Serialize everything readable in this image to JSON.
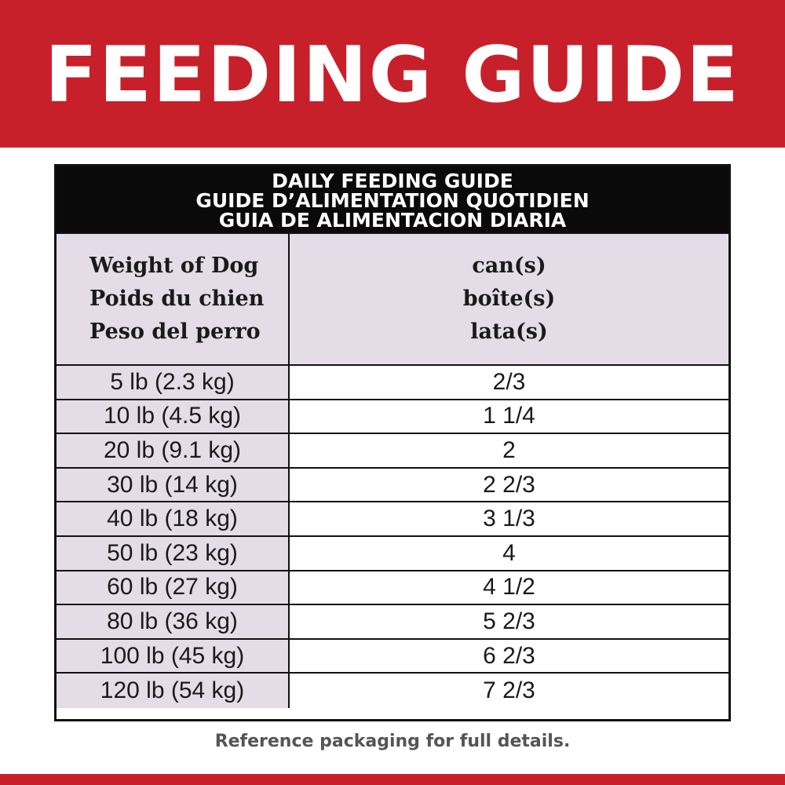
{
  "banner": {
    "title": "FEEDING GUIDE"
  },
  "table": {
    "header_lines": [
      "DAILY FEEDING GUIDE",
      "GUIDE D’ALIMENTATION QUOTIDIEN",
      "GUIA DE ALIMENTACION DIARIA"
    ],
    "col_weight_lines": [
      "Weight of Dog",
      "Poids du chien",
      "Peso del perro"
    ],
    "col_cans_lines": [
      "can(s)",
      "boîte(s)",
      "lata(s)"
    ],
    "rows": [
      {
        "weight": "5 lb (2.3 kg)",
        "cans": "2/3"
      },
      {
        "weight": "10 lb (4.5 kg)",
        "cans": "1 1/4"
      },
      {
        "weight": "20 lb (9.1 kg)",
        "cans": "2"
      },
      {
        "weight": "30 lb (14 kg)",
        "cans": "2 2/3"
      },
      {
        "weight": "40 lb (18 kg)",
        "cans": "3 1/3"
      },
      {
        "weight": "50 lb (23 kg)",
        "cans": "4"
      },
      {
        "weight": "60 lb (27 kg)",
        "cans": "4 1/2"
      },
      {
        "weight": "80 lb (36 kg)",
        "cans": "5 2/3"
      },
      {
        "weight": "100 lb (45 kg)",
        "cans": "6 2/3"
      },
      {
        "weight": "120 lb (54 kg)",
        "cans": "7 2/3"
      }
    ]
  },
  "footnote": "Reference packaging for full details.",
  "colors": {
    "brand_red": "#c8202a",
    "header_black": "#0a0a0a",
    "lavender": "#e4dce6"
  }
}
